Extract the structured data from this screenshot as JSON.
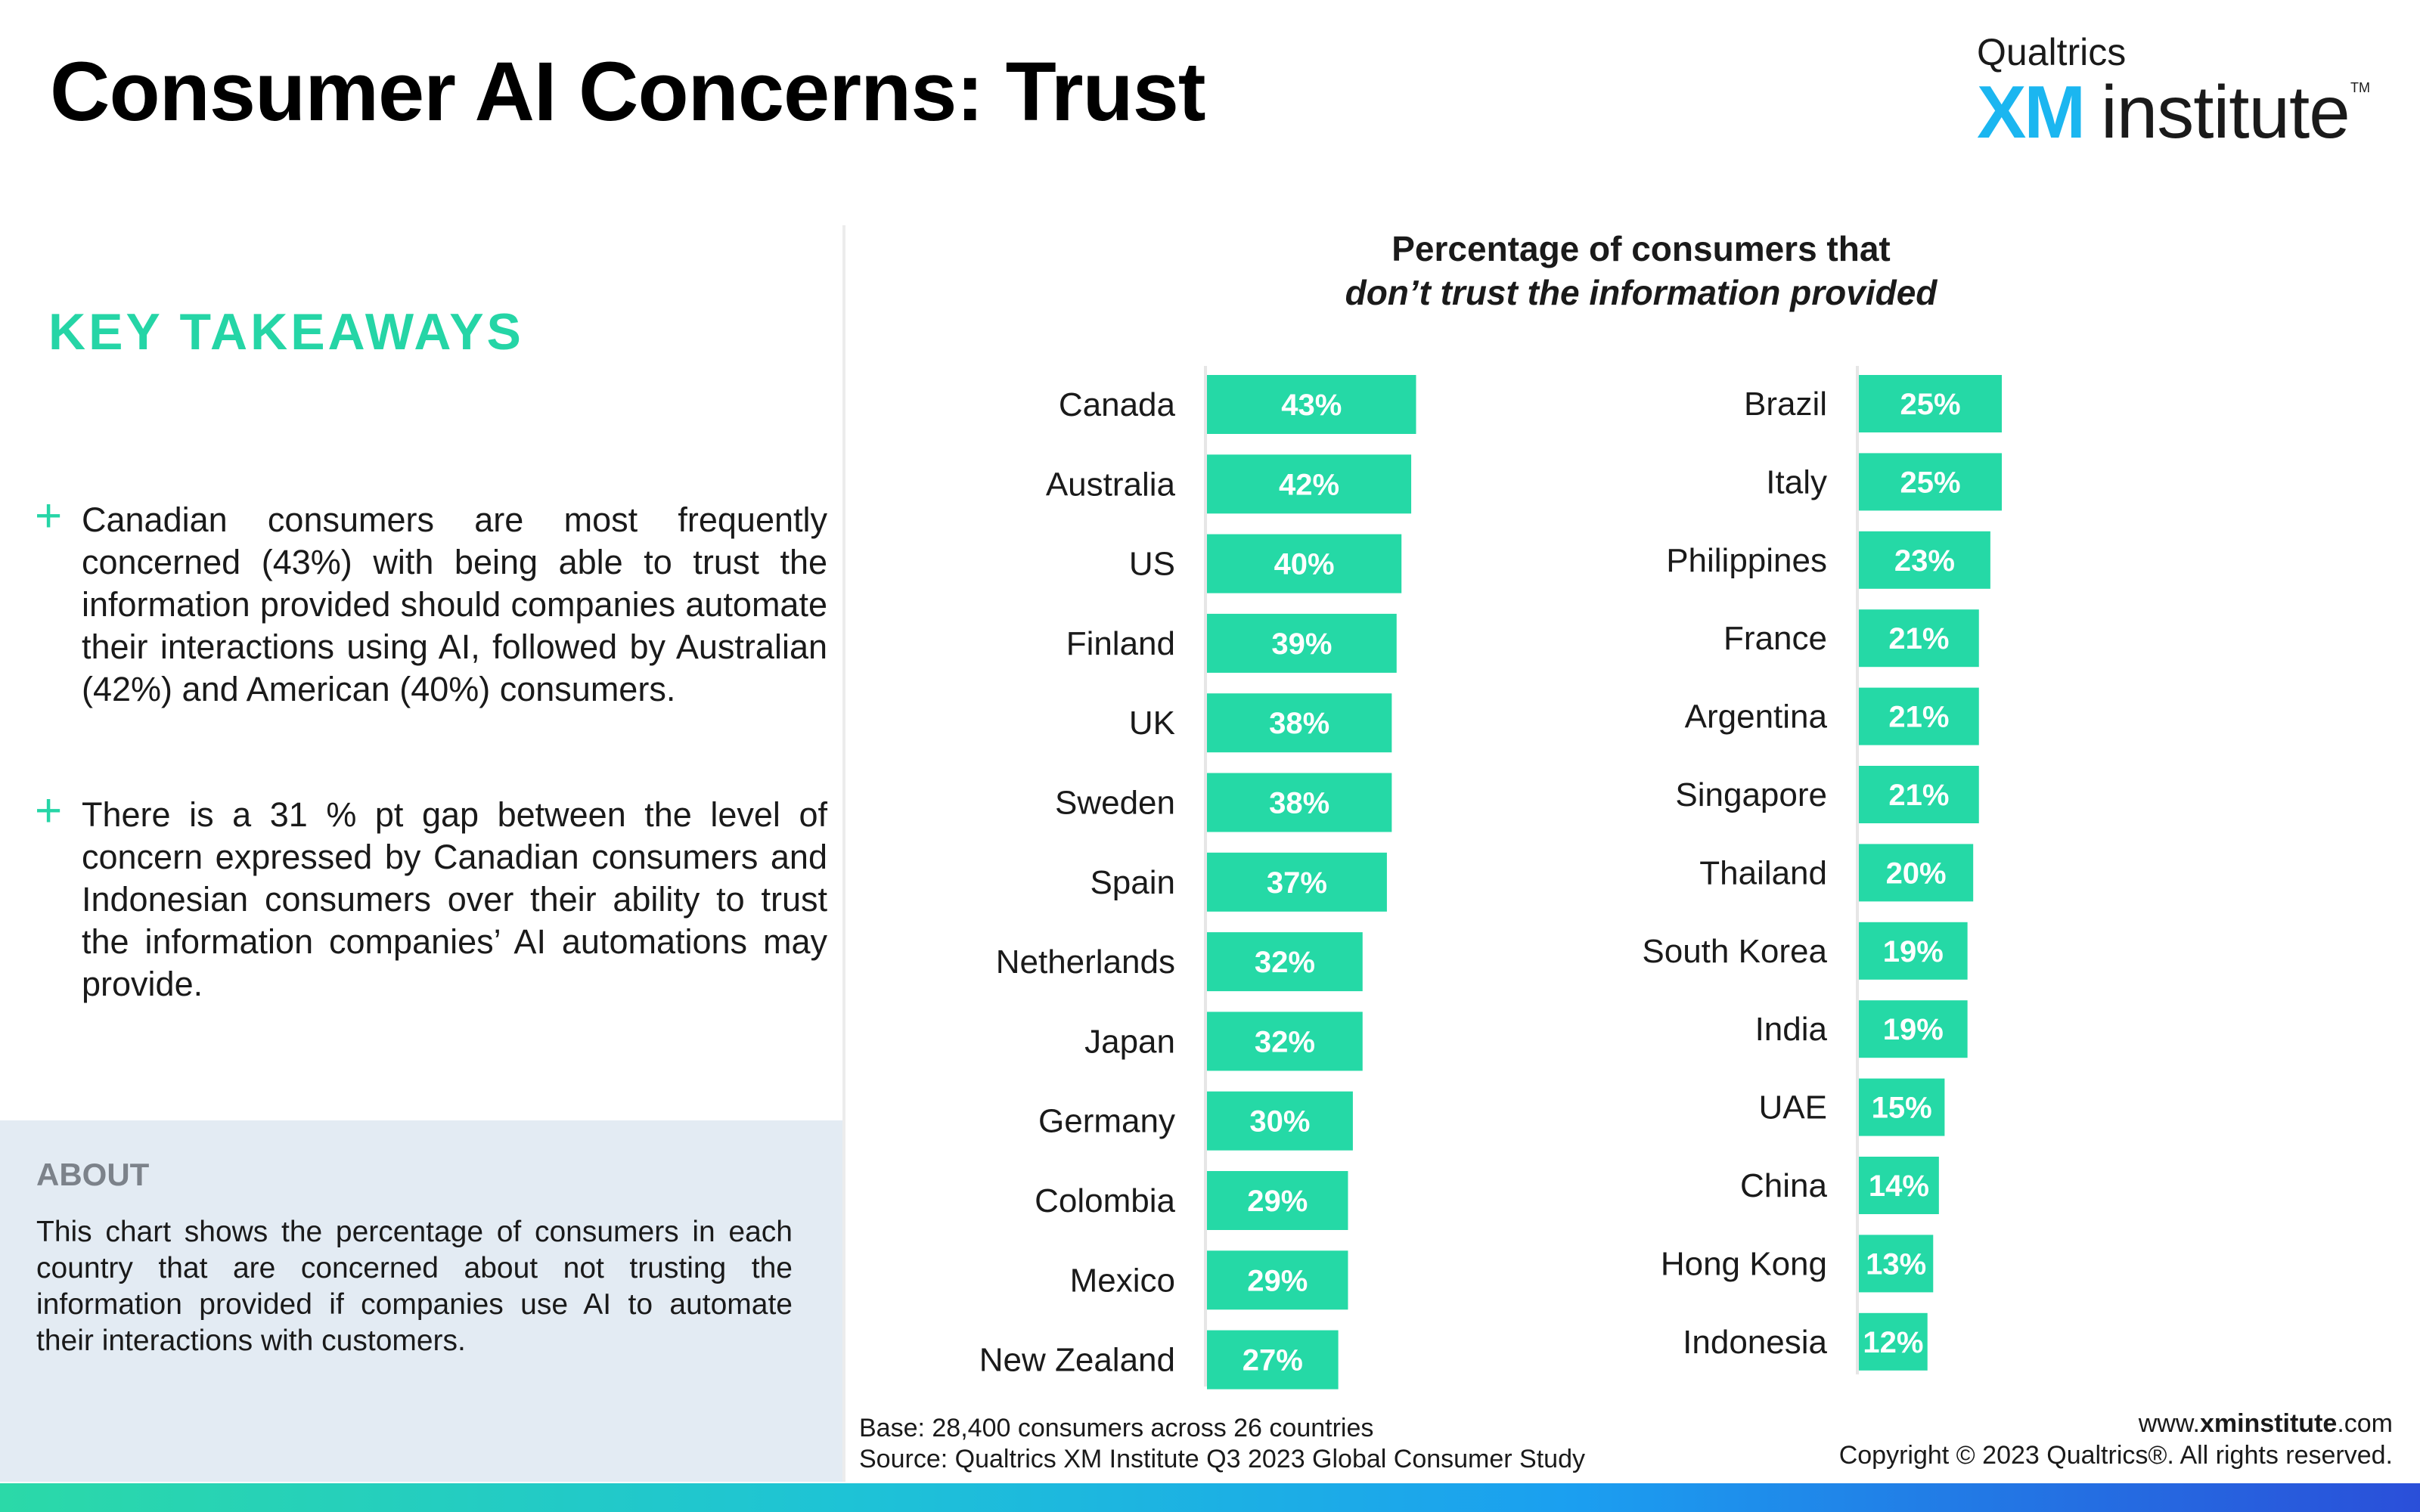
{
  "header": {
    "title": "Consumer AI Concerns: Trust"
  },
  "logo": {
    "top": "Qualtrics",
    "xm": "XM",
    "institute": "institute",
    "tm": "TM"
  },
  "takeaways": {
    "heading": "KEY TAKEAWAYS",
    "items": [
      {
        "text": "Canadian consumers are most frequently concerned (43%) with being able to trust the information provided should companies automate their interactions using AI, followed by Australian (42%) and American (40%) consumers."
      },
      {
        "text": "There is a 31 % pt gap between the level of concern expressed by Canadian consumers and Indonesian consumers over their ability to trust the information companies’ AI automations may provide."
      }
    ]
  },
  "about": {
    "heading": "ABOUT",
    "text": "This chart shows the percentage of consumers in each country that are concerned about not trusting the information provided if companies use AI to automate their interactions with customers."
  },
  "chart_data": {
    "type": "bar",
    "orientation": "horizontal",
    "title": "Percentage of consumers that",
    "subtitle": "don’t trust the information provided",
    "bar_color": "#25d9a6",
    "xlim": [
      0,
      50
    ],
    "groups": [
      {
        "categories": [
          "Canada",
          "Australia",
          "US",
          "Finland",
          "UK",
          "Sweden",
          "Spain",
          "Netherlands",
          "Japan",
          "Germany",
          "Colombia",
          "Mexico",
          "New Zealand"
        ],
        "values": [
          43,
          42,
          40,
          39,
          38,
          38,
          37,
          32,
          32,
          30,
          29,
          29,
          27
        ],
        "labels": [
          "43%",
          "42%",
          "40%",
          "39%",
          "38%",
          "38%",
          "37%",
          "32%",
          "32%",
          "30%",
          "29%",
          "29%",
          "27%"
        ]
      },
      {
        "categories": [
          "Brazil",
          "Italy",
          "Philippines",
          "France",
          "Argentina",
          "Singapore",
          "Thailand",
          "South Korea",
          "India",
          "UAE",
          "China",
          "Hong Kong",
          "Indonesia"
        ],
        "values": [
          25,
          25,
          23,
          21,
          21,
          21,
          20,
          19,
          19,
          15,
          14,
          13,
          12
        ],
        "labels": [
          "25%",
          "25%",
          "23%",
          "21%",
          "21%",
          "21%",
          "20%",
          "19%",
          "19%",
          "15%",
          "14%",
          "13%",
          "12%"
        ]
      }
    ]
  },
  "footer": {
    "base": "Base: 28,400 consumers across 26 countries",
    "source": "Source: Qualtrics XM Institute Q3 2023 Global Consumer Study",
    "site_prefix": "www.",
    "site_bold": "xminstitute",
    "site_suffix": ".com",
    "copyright": "Copyright © 2023 Qualtrics®. All rights reserved."
  }
}
